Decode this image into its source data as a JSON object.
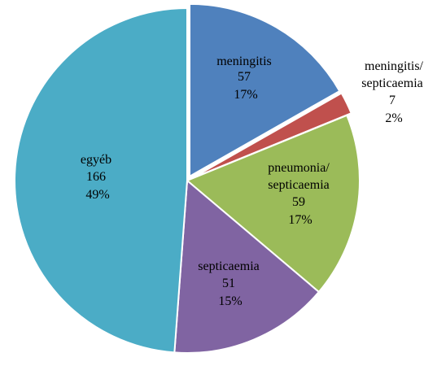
{
  "chart_data": {
    "type": "pie",
    "slices": [
      {
        "label_lines": [
          "meningitis"
        ],
        "value": 57,
        "value_label": "57",
        "percent_label": "17%",
        "color": "#4F81BD",
        "exploded": true
      },
      {
        "label_lines": [
          "meningitis/",
          "septicaemia"
        ],
        "value": 7,
        "value_label": "7",
        "percent_label": "2%",
        "color": "#C0504D",
        "exploded": true
      },
      {
        "label_lines": [
          "pneumonia/",
          "septicaemia"
        ],
        "value": 59,
        "value_label": "59",
        "percent_label": "17%",
        "color": "#9BBB59",
        "exploded": false
      },
      {
        "label_lines": [
          "septicaemia"
        ],
        "value": 51,
        "value_label": "51",
        "percent_label": "15%",
        "color": "#8064A2",
        "exploded": false
      },
      {
        "label_lines": [
          "egyéb"
        ],
        "value": 166,
        "value_label": "166",
        "percent_label": "49%",
        "color": "#4BACC6",
        "exploded": false
      }
    ]
  }
}
